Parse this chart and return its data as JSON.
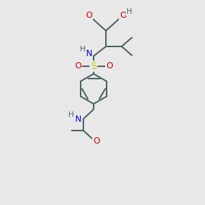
{
  "bg_color": "#e8e8e8",
  "bond_color": "#4a6060",
  "bond_lw": 1.5,
  "atom_colors": {
    "C": "#4a6060",
    "H": "#4a6060",
    "N": "#0000cc",
    "O": "#cc0000",
    "S": "#cccc00"
  },
  "font_size": 9,
  "font_size_small": 8
}
